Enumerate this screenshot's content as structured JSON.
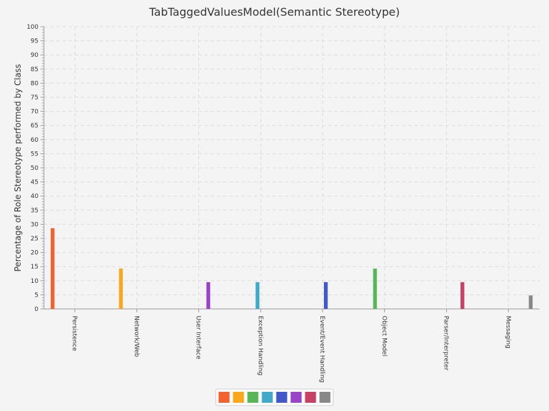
{
  "chart_data": {
    "type": "bar",
    "title": "TabTaggedValuesModel(Semantic Stereotype)",
    "xlabel": "",
    "ylabel": "Percentage of Role Stereotype performed by Class",
    "ylim": [
      0,
      100
    ],
    "yticks": [
      0,
      5,
      10,
      15,
      20,
      25,
      30,
      35,
      40,
      45,
      50,
      55,
      60,
      65,
      70,
      75,
      80,
      85,
      90,
      95,
      100
    ],
    "grid": true,
    "legend_position": "bottom",
    "categories": [
      "Persistence",
      "Network/Web",
      "User Interface",
      "Exception Handling",
      "Event/Event Handling",
      "Object Model",
      "Parser/Interpreter",
      "Messaging"
    ],
    "series": [
      {
        "color": "#f3622d",
        "values": [
          28.6,
          0,
          0,
          0,
          0,
          0,
          0,
          0
        ]
      },
      {
        "color": "#fba71b",
        "values": [
          0,
          14.3,
          0,
          0,
          0,
          0,
          0,
          0
        ]
      },
      {
        "color": "#57b757",
        "values": [
          0,
          0,
          0,
          0,
          0,
          14.3,
          0,
          0
        ]
      },
      {
        "color": "#41a9c9",
        "values": [
          0,
          0,
          0,
          9.5,
          0,
          0,
          0,
          0
        ]
      },
      {
        "color": "#4258c9",
        "values": [
          0,
          0,
          0,
          0,
          9.5,
          0,
          0,
          0
        ]
      },
      {
        "color": "#9a42c8",
        "values": [
          0,
          0,
          9.5,
          0,
          0,
          0,
          0,
          0
        ]
      },
      {
        "color": "#c84164",
        "values": [
          0,
          0,
          0,
          0,
          0,
          0,
          9.5,
          0
        ]
      },
      {
        "color": "#888888",
        "values": [
          0,
          0,
          0,
          0,
          0,
          0,
          0,
          4.8
        ]
      }
    ]
  }
}
